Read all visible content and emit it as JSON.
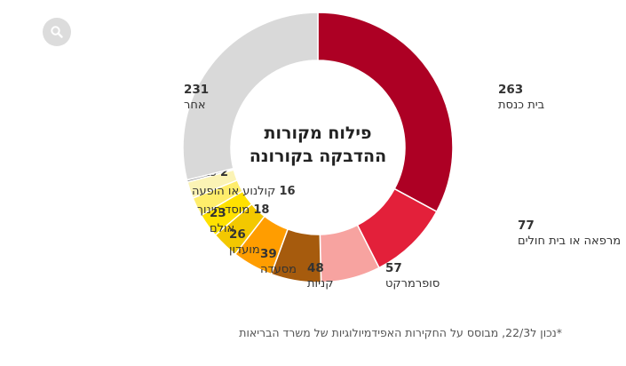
{
  "chart_data": {
    "type": "pie",
    "title": "פילוח מקורות ההדבקה בקורונה",
    "title_lines": [
      "פילוח מקורות",
      "ההדבקה בקורונה"
    ],
    "slices": [
      {
        "label": "בית כנסת",
        "value": 263,
        "color": "#ad0024"
      },
      {
        "label": "מרפאה או בית חולים",
        "value": 77,
        "color": "#e3203a"
      },
      {
        "label": "סופרמרקט",
        "value": 57,
        "color": "#f7a3a0"
      },
      {
        "label": "קניות",
        "value": 48,
        "color": "#a65b0d"
      },
      {
        "label": "מסעדה",
        "value": 39,
        "color": "#ff9d00"
      },
      {
        "label": "מועדון",
        "value": 26,
        "color": "#f3c800"
      },
      {
        "label": "אולם",
        "value": 23,
        "color": "#ffe100"
      },
      {
        "label": "מוסד חינוך",
        "value": 18,
        "color": "#ffed6b"
      },
      {
        "label": "קולנוע או הופעה",
        "value": 16,
        "color": "#fbf3b5"
      },
      {
        "label": "כנסייה",
        "value": 2,
        "color": "#8a8a8a"
      },
      {
        "label": "אחר",
        "value": 231,
        "color": "#d9d9d9"
      }
    ]
  },
  "footnote": "*נכון ל22/3, מבוסס על החקירות האפידמיולוגיות של משרד הבריאות",
  "icons": {
    "zoom": "zoom-icon"
  }
}
